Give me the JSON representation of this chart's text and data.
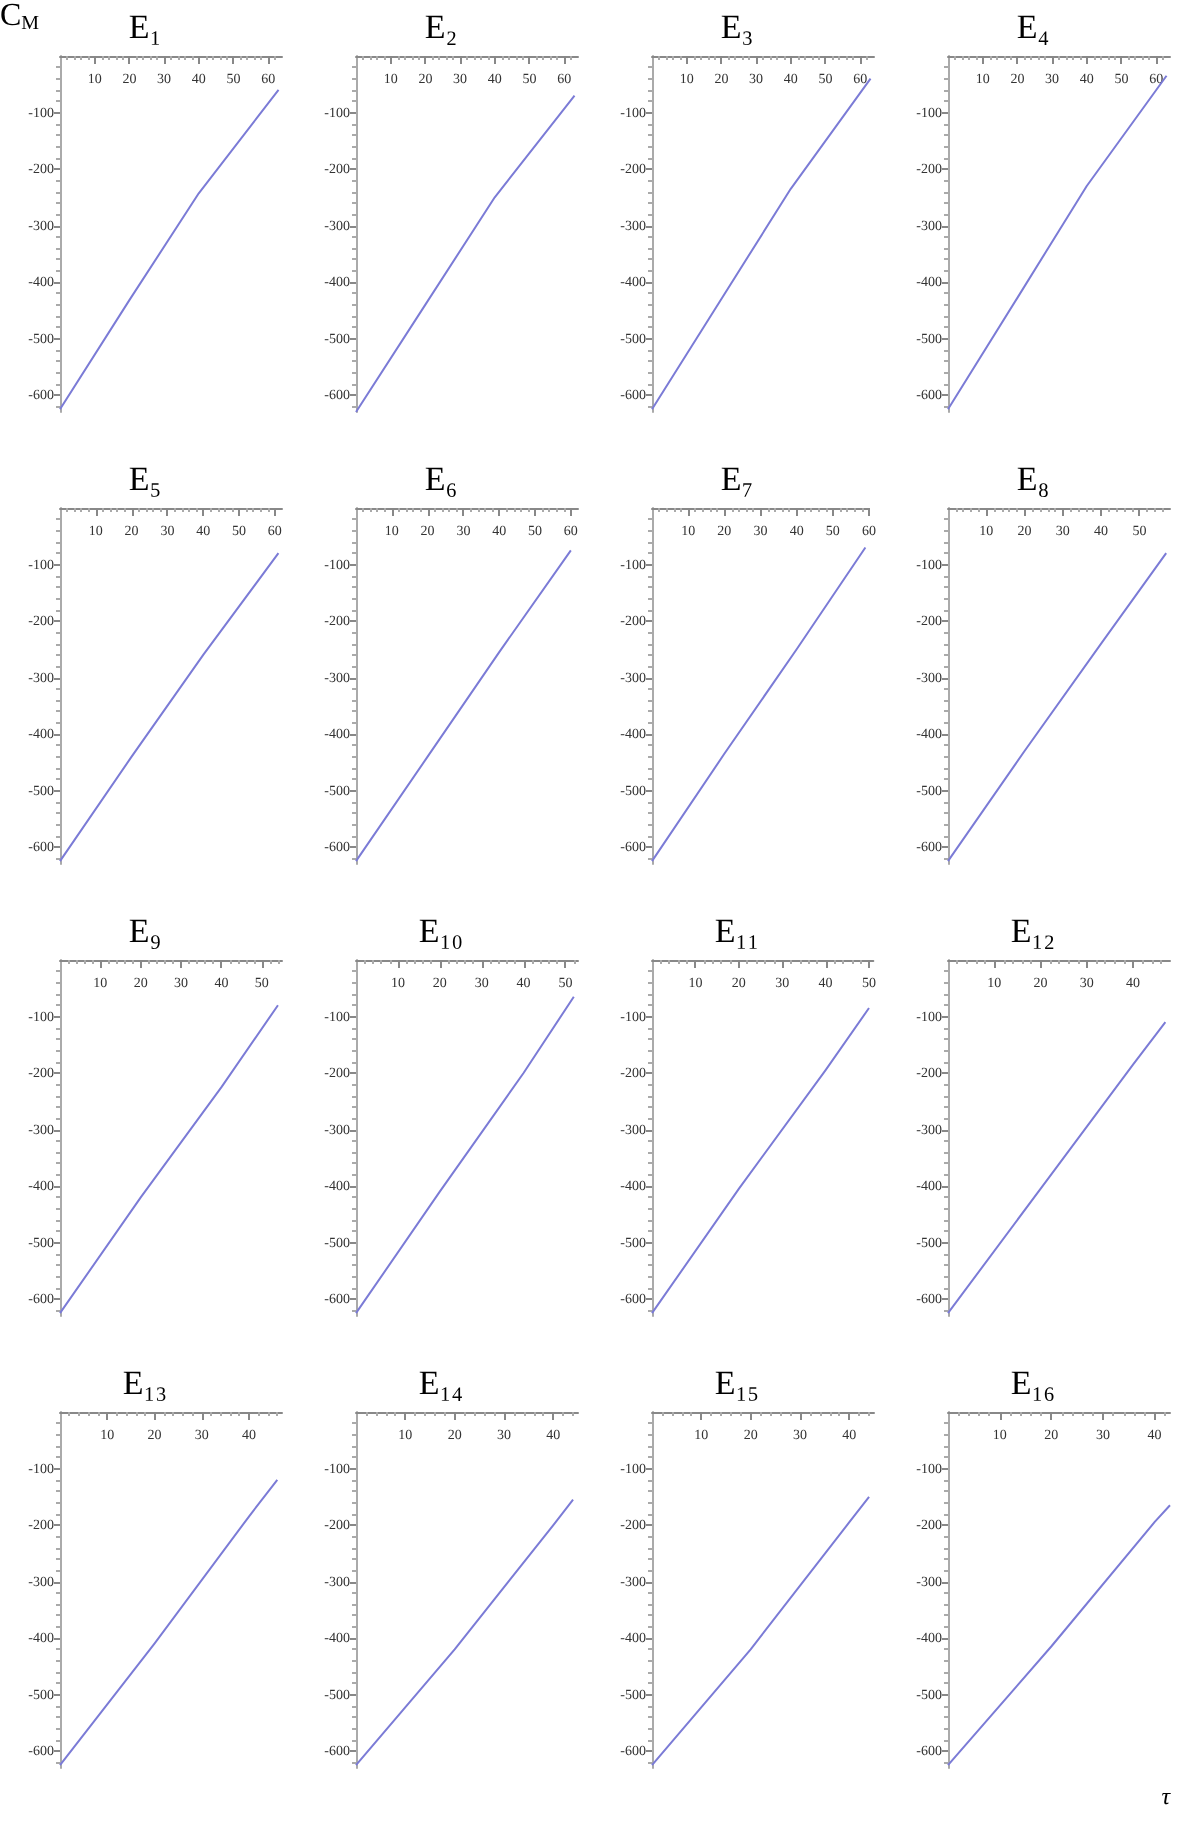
{
  "chart_data": [
    {
      "type": "line",
      "title": "E₁",
      "ylabel": "C$_{M}$",
      "x": [
        0,
        20,
        40,
        63
      ],
      "series": [
        {
          "color": "#7b7bd6",
          "values": [
            -625,
            -432,
            -243,
            -60
          ]
        }
      ],
      "xlim": [
        0,
        64
      ],
      "xticks": [
        10,
        20,
        30,
        40,
        50,
        60
      ],
      "ylim": [
        -630,
        0
      ],
      "yticks": [
        -600,
        -500,
        -400,
        -300,
        -200,
        -100
      ],
      "grid": false,
      "marker": "none"
    },
    {
      "type": "line",
      "title": "E₂",
      "x": [
        0,
        20,
        40,
        63
      ],
      "series": [
        {
          "color": "#7b7bd6",
          "values": [
            -630,
            -440,
            -250,
            -70
          ]
        }
      ],
      "xlim": [
        0,
        64
      ],
      "xticks": [
        10,
        20,
        30,
        40,
        50,
        60
      ],
      "ylim": [
        -630,
        0
      ],
      "yticks": [
        -600,
        -500,
        -400,
        -300,
        -200,
        -100
      ],
      "grid": false,
      "marker": "none"
    },
    {
      "type": "line",
      "title": "E₃",
      "x": [
        0,
        20,
        40,
        63
      ],
      "series": [
        {
          "color": "#7b7bd6",
          "values": [
            -625,
            -430,
            -235,
            -40
          ]
        }
      ],
      "xlim": [
        0,
        64
      ],
      "xticks": [
        10,
        20,
        30,
        40,
        50,
        60
      ],
      "ylim": [
        -630,
        0
      ],
      "yticks": [
        -600,
        -500,
        -400,
        -300,
        -200,
        -100
      ],
      "grid": false,
      "marker": "none"
    },
    {
      "type": "line",
      "title": "E₄",
      "x": [
        0,
        20,
        40,
        63
      ],
      "series": [
        {
          "color": "#7b7bd6",
          "values": [
            -625,
            -428,
            -230,
            -35
          ]
        }
      ],
      "xlim": [
        0,
        64
      ],
      "xticks": [
        10,
        20,
        30,
        40,
        50,
        60
      ],
      "ylim": [
        -630,
        0
      ],
      "yticks": [
        -600,
        -500,
        -400,
        -300,
        -200,
        -100
      ],
      "grid": false,
      "marker": "none"
    },
    {
      "type": "line",
      "title": "E₅",
      "x": [
        0,
        20,
        40,
        61
      ],
      "series": [
        {
          "color": "#7b7bd6",
          "values": [
            -625,
            -440,
            -260,
            -80
          ]
        }
      ],
      "xlim": [
        0,
        62
      ],
      "xticks": [
        10,
        20,
        30,
        40,
        50,
        60
      ],
      "ylim": [
        -630,
        0
      ],
      "yticks": [
        -600,
        -500,
        -400,
        -300,
        -200,
        -100
      ],
      "grid": false,
      "marker": "none"
    },
    {
      "type": "line",
      "title": "E₆",
      "x": [
        0,
        20,
        40,
        60
      ],
      "series": [
        {
          "color": "#7b7bd6",
          "values": [
            -625,
            -440,
            -255,
            -75
          ]
        }
      ],
      "xlim": [
        0,
        62
      ],
      "xticks": [
        10,
        20,
        30,
        40,
        50,
        60
      ],
      "ylim": [
        -630,
        0
      ],
      "yticks": [
        -600,
        -500,
        -400,
        -300,
        -200,
        -100
      ],
      "grid": false,
      "marker": "none"
    },
    {
      "type": "line",
      "title": "E₇",
      "x": [
        0,
        20,
        40,
        59
      ],
      "series": [
        {
          "color": "#7b7bd6",
          "values": [
            -625,
            -435,
            -250,
            -70
          ]
        }
      ],
      "xlim": [
        0,
        60
      ],
      "xticks": [
        10,
        20,
        30,
        40,
        50,
        60
      ],
      "ylim": [
        -630,
        0
      ],
      "yticks": [
        -600,
        -500,
        -400,
        -300,
        -200,
        -100
      ],
      "grid": false,
      "marker": "none"
    },
    {
      "type": "line",
      "title": "E₈",
      "x": [
        0,
        20,
        40,
        57
      ],
      "series": [
        {
          "color": "#7b7bd6",
          "values": [
            -625,
            -430,
            -240,
            -80
          ]
        }
      ],
      "xlim": [
        0,
        58
      ],
      "xticks": [
        10,
        20,
        30,
        40,
        50
      ],
      "ylim": [
        -630,
        0
      ],
      "yticks": [
        -600,
        -500,
        -400,
        -300,
        -200,
        -100
      ],
      "grid": false,
      "marker": "none"
    },
    {
      "type": "line",
      "title": "E₉",
      "x": [
        0,
        20,
        40,
        54
      ],
      "series": [
        {
          "color": "#7b7bd6",
          "values": [
            -625,
            -420,
            -225,
            -80
          ]
        }
      ],
      "xlim": [
        0,
        55
      ],
      "xticks": [
        10,
        20,
        30,
        40,
        50
      ],
      "ylim": [
        -630,
        0
      ],
      "yticks": [
        -600,
        -500,
        -400,
        -300,
        -200,
        -100
      ],
      "grid": false,
      "marker": "none"
    },
    {
      "type": "line",
      "title": "E₁₀",
      "x": [
        0,
        20,
        40,
        52
      ],
      "series": [
        {
          "color": "#7b7bd6",
          "values": [
            -625,
            -410,
            -200,
            -65
          ]
        }
      ],
      "xlim": [
        0,
        53
      ],
      "xticks": [
        10,
        20,
        30,
        40,
        50
      ],
      "ylim": [
        -630,
        0
      ],
      "yticks": [
        -600,
        -500,
        -400,
        -300,
        -200,
        -100
      ],
      "grid": false,
      "marker": "none"
    },
    {
      "type": "line",
      "title": "E₁₁",
      "x": [
        0,
        20,
        40,
        50
      ],
      "series": [
        {
          "color": "#7b7bd6",
          "values": [
            -625,
            -405,
            -195,
            -85
          ]
        }
      ],
      "xlim": [
        0,
        51
      ],
      "xticks": [
        10,
        20,
        30,
        40,
        50
      ],
      "ylim": [
        -630,
        0
      ],
      "yticks": [
        -600,
        -500,
        -400,
        -300,
        -200,
        -100
      ],
      "grid": false,
      "marker": "none"
    },
    {
      "type": "line",
      "title": "E₁₂",
      "x": [
        0,
        20,
        40,
        47
      ],
      "series": [
        {
          "color": "#7b7bd6",
          "values": [
            -625,
            -405,
            -185,
            -110
          ]
        }
      ],
      "xlim": [
        0,
        48
      ],
      "xticks": [
        10,
        20,
        30,
        40
      ],
      "ylim": [
        -630,
        0
      ],
      "yticks": [
        -600,
        -500,
        -400,
        -300,
        -200,
        -100
      ],
      "grid": false,
      "marker": "none"
    },
    {
      "type": "line",
      "title": "E₁₃",
      "x": [
        0,
        20,
        40,
        46
      ],
      "series": [
        {
          "color": "#7b7bd6",
          "values": [
            -625,
            -410,
            -185,
            -120
          ]
        }
      ],
      "xlim": [
        0,
        47
      ],
      "xticks": [
        10,
        20,
        30,
        40
      ],
      "ylim": [
        -630,
        0
      ],
      "yticks": [
        -600,
        -500,
        -400,
        -300,
        -200,
        -100
      ],
      "grid": false,
      "marker": "none"
    },
    {
      "type": "line",
      "title": "E₁₄",
      "x": [
        0,
        20,
        40,
        44
      ],
      "series": [
        {
          "color": "#7b7bd6",
          "values": [
            -625,
            -420,
            -200,
            -155
          ]
        }
      ],
      "xlim": [
        0,
        45
      ],
      "xticks": [
        10,
        20,
        30,
        40
      ],
      "ylim": [
        -630,
        0
      ],
      "yticks": [
        -600,
        -500,
        -400,
        -300,
        -200,
        -100
      ],
      "grid": false,
      "marker": "none"
    },
    {
      "type": "line",
      "title": "E₁₅",
      "x": [
        0,
        20,
        40,
        44
      ],
      "series": [
        {
          "color": "#7b7bd6",
          "values": [
            -625,
            -420,
            -195,
            -150
          ]
        }
      ],
      "xlim": [
        0,
        45
      ],
      "xticks": [
        10,
        20,
        30,
        40
      ],
      "ylim": [
        -630,
        0
      ],
      "yticks": [
        -600,
        -500,
        -400,
        -300,
        -200,
        -100
      ],
      "grid": false,
      "marker": "none"
    },
    {
      "type": "line",
      "title": "E₁₆",
      "xlabel": "τ",
      "x": [
        0,
        20,
        40,
        43
      ],
      "series": [
        {
          "color": "#7b7bd6",
          "values": [
            -625,
            -415,
            -195,
            -165
          ]
        }
      ],
      "xlim": [
        0,
        43
      ],
      "xticks": [
        10,
        20,
        30,
        40
      ],
      "ylim": [
        -630,
        0
      ],
      "yticks": [
        -600,
        -500,
        -400,
        -300,
        -200,
        -100
      ],
      "grid": false,
      "marker": "none"
    }
  ]
}
